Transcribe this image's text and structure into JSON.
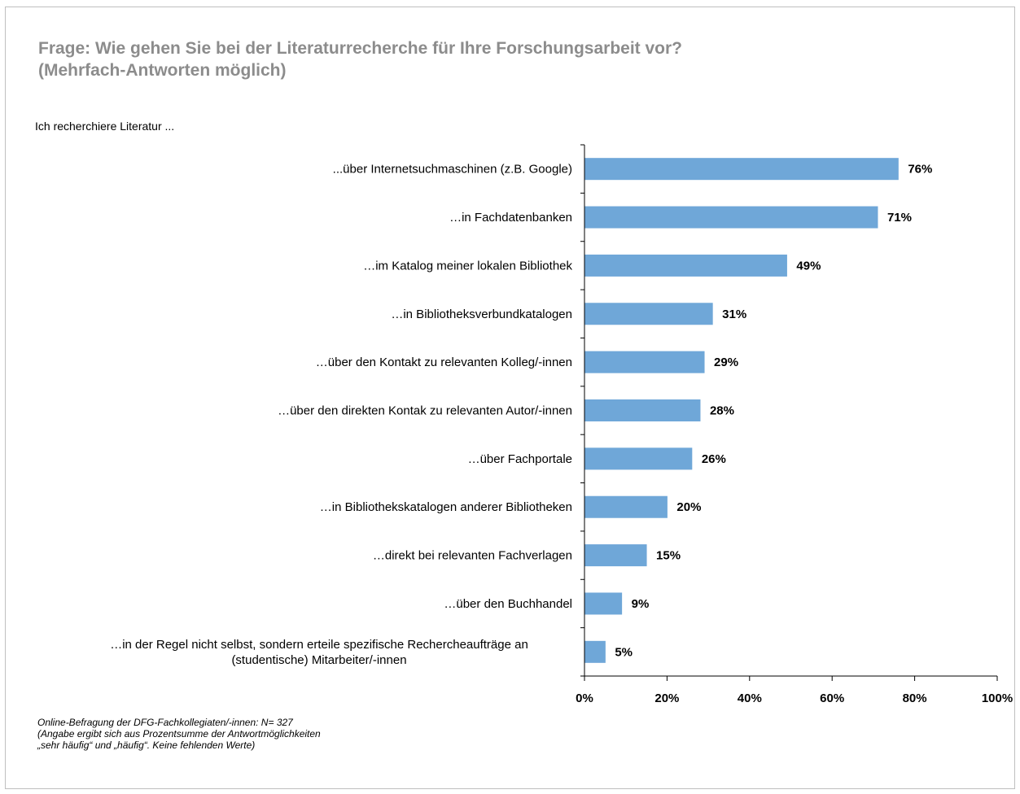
{
  "header": {
    "title_line1": "Frage: Wie gehen Sie bei der Literaturrecherche für Ihre Forschungsarbeit vor?",
    "title_line2": "(Mehrfach-Antworten möglich)",
    "intro": "Ich recherchiere Literatur ..."
  },
  "footer": {
    "line1": "Online-Befragung der DFG-Fachkollegiaten/-innen: N= 327",
    "line2": "(Angabe ergibt sich aus Prozentsumme der Antwortmöglichkeiten",
    "line3": "„sehr häufig“ und „häufig“. Keine fehlenden Werte)"
  },
  "chart_data": {
    "type": "bar",
    "orientation": "horizontal",
    "categories": [
      [
        "...über Internetsuchmaschinen (z.B. Google)"
      ],
      [
        "…in Fachdatenbanken"
      ],
      [
        "…im Katalog meiner lokalen Bibliothek"
      ],
      [
        "…in Bibliotheksverbundkatalogen"
      ],
      [
        "…über den Kontakt zu relevanten Kolleg/-innen"
      ],
      [
        "…über den direkten Kontak zu relevanten Autor/-innen"
      ],
      [
        "…über Fachportale"
      ],
      [
        "…in Bibliothekskatalogen anderer Bibliotheken"
      ],
      [
        "…direkt bei relevanten Fachverlagen"
      ],
      [
        "…über den Buchhandel"
      ],
      [
        "…in der Regel nicht selbst, sondern erteile spezifische Rechercheaufträge an",
        "(studentische) Mitarbeiter/-innen"
      ]
    ],
    "values": [
      76,
      71,
      49,
      31,
      29,
      28,
      26,
      20,
      15,
      9,
      5
    ],
    "value_labels": [
      "76%",
      "71%",
      "49%",
      "31%",
      "29%",
      "28%",
      "26%",
      "20%",
      "15%",
      "9%",
      "5%"
    ],
    "xlim": [
      0,
      100
    ],
    "xticks": [
      0,
      20,
      40,
      60,
      80,
      100
    ],
    "xtick_labels": [
      "0%",
      "20%",
      "40%",
      "60%",
      "80%",
      "100%"
    ],
    "bar_color": "#6fa7d8",
    "grid": false,
    "legend": "none"
  }
}
